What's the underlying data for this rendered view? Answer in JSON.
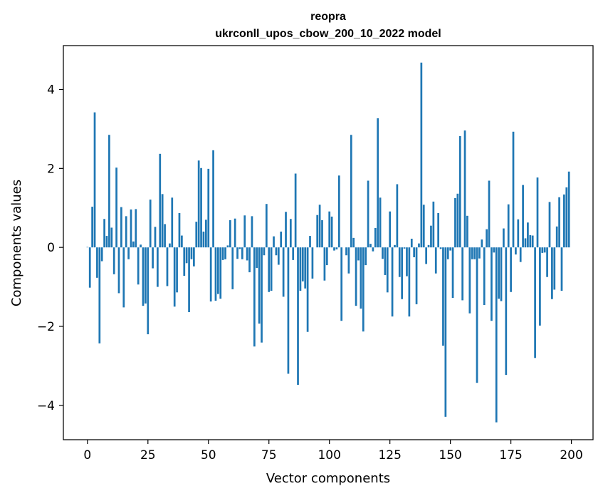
{
  "chart_data": {
    "type": "bar",
    "title": "reopra",
    "subtitle": "ukrconll_upos_cbow_200_10_2022 model",
    "xlabel": "Vector components",
    "ylabel": "Components values",
    "xlim": [
      -9.95,
      208.95
    ],
    "ylim": [
      -4.87,
      5.11
    ],
    "xticks": [
      0,
      25,
      50,
      75,
      100,
      125,
      150,
      175,
      200
    ],
    "xtick_labels": [
      "0",
      "25",
      "50",
      "75",
      "100",
      "125",
      "150",
      "175",
      "200"
    ],
    "yticks": [
      -4,
      -2,
      0,
      2,
      4
    ],
    "ytick_labels": [
      "−4",
      "−2",
      "0",
      "2",
      "4"
    ],
    "grid": false,
    "bar_color": "#1f77b4",
    "x": [
      0,
      1,
      2,
      3,
      4,
      5,
      6,
      7,
      8,
      9,
      10,
      11,
      12,
      13,
      14,
      15,
      16,
      17,
      18,
      19,
      20,
      21,
      22,
      23,
      24,
      25,
      26,
      27,
      28,
      29,
      30,
      31,
      32,
      33,
      34,
      35,
      36,
      37,
      38,
      39,
      40,
      41,
      42,
      43,
      44,
      45,
      46,
      47,
      48,
      49,
      50,
      51,
      52,
      53,
      54,
      55,
      56,
      57,
      58,
      59,
      60,
      61,
      62,
      63,
      64,
      65,
      66,
      67,
      68,
      69,
      70,
      71,
      72,
      73,
      74,
      75,
      76,
      77,
      78,
      79,
      80,
      81,
      82,
      83,
      84,
      85,
      86,
      87,
      88,
      89,
      90,
      91,
      92,
      93,
      94,
      95,
      96,
      97,
      98,
      99,
      100,
      101,
      102,
      103,
      104,
      105,
      106,
      107,
      108,
      109,
      110,
      111,
      112,
      113,
      114,
      115,
      116,
      117,
      118,
      119,
      120,
      121,
      122,
      123,
      124,
      125,
      126,
      127,
      128,
      129,
      130,
      131,
      132,
      133,
      134,
      135,
      136,
      137,
      138,
      139,
      140,
      141,
      142,
      143,
      144,
      145,
      146,
      147,
      148,
      149,
      150,
      151,
      152,
      153,
      154,
      155,
      156,
      157,
      158,
      159,
      160,
      161,
      162,
      163,
      164,
      165,
      166,
      167,
      168,
      169,
      170,
      171,
      172,
      173,
      174,
      175,
      176,
      177,
      178,
      179,
      180,
      181,
      182,
      183,
      184,
      185,
      186,
      187,
      188,
      189,
      190,
      191,
      192,
      193,
      194,
      195,
      196,
      197,
      198,
      199
    ],
    "values": [
      0.01,
      -1.02,
      1.03,
      3.42,
      -0.77,
      -2.43,
      -0.35,
      0.72,
      0.29,
      2.85,
      0.5,
      -0.68,
      2.02,
      -1.16,
      1.02,
      -1.52,
      0.79,
      -0.3,
      0.96,
      0.15,
      0.97,
      -0.94,
      0.07,
      -1.48,
      -1.42,
      -2.2,
      1.21,
      -0.53,
      0.52,
      -1.0,
      2.37,
      1.35,
      0.59,
      -0.98,
      0.1,
      1.26,
      -1.5,
      -1.14,
      0.87,
      0.3,
      -0.72,
      -0.4,
      -1.64,
      -0.3,
      -0.48,
      0.65,
      2.2,
      2.01,
      0.4,
      0.7,
      1.99,
      -1.37,
      2.46,
      -1.35,
      -1.18,
      -1.3,
      -0.32,
      -0.3,
      0.05,
      0.69,
      -1.06,
      0.73,
      -0.29,
      -0.04,
      -0.3,
      0.81,
      -0.33,
      -0.63,
      0.79,
      -2.51,
      -0.52,
      -1.93,
      -2.41,
      -0.2,
      1.1,
      -1.13,
      -1.1,
      0.28,
      -0.2,
      -0.44,
      0.4,
      -1.25,
      0.9,
      -3.2,
      0.72,
      -0.32,
      1.87,
      -3.48,
      -1.1,
      -0.86,
      -1.04,
      -2.14,
      0.29,
      -0.79,
      0.0,
      0.82,
      1.08,
      0.69,
      -0.84,
      -0.45,
      0.91,
      0.78,
      -0.08,
      -0.05,
      1.82,
      -1.86,
      0.0,
      -0.2,
      -0.66,
      2.85,
      0.24,
      -1.48,
      -0.33,
      -1.55,
      -2.13,
      -0.45,
      1.69,
      0.09,
      -0.1,
      0.49,
      3.27,
      1.26,
      -0.29,
      -0.7,
      -1.14,
      0.91,
      -1.75,
      0.06,
      1.6,
      -0.75,
      -1.31,
      -0.03,
      -0.73,
      -1.75,
      0.22,
      -0.25,
      -1.44,
      0.1,
      4.68,
      1.08,
      -0.42,
      0.06,
      0.55,
      1.16,
      -0.66,
      0.87,
      -0.04,
      -2.49,
      -4.29,
      -0.3,
      -0.08,
      -1.28,
      1.25,
      1.36,
      2.82,
      -1.34,
      2.96,
      0.8,
      -1.67,
      -0.3,
      -0.3,
      -3.43,
      -0.28,
      0.2,
      -1.46,
      0.46,
      1.69,
      -1.86,
      -0.13,
      -4.43,
      -1.3,
      -1.36,
      0.48,
      -3.23,
      1.09,
      -1.13,
      2.93,
      -0.18,
      0.71,
      -0.37,
      1.58,
      0.23,
      0.63,
      0.31,
      0.3,
      -2.8,
      1.77,
      -1.98,
      -0.14,
      -0.13,
      -0.75,
      1.15,
      -1.31,
      -1.07,
      0.53,
      1.27,
      -1.1,
      1.34,
      1.52,
      1.92
    ]
  }
}
